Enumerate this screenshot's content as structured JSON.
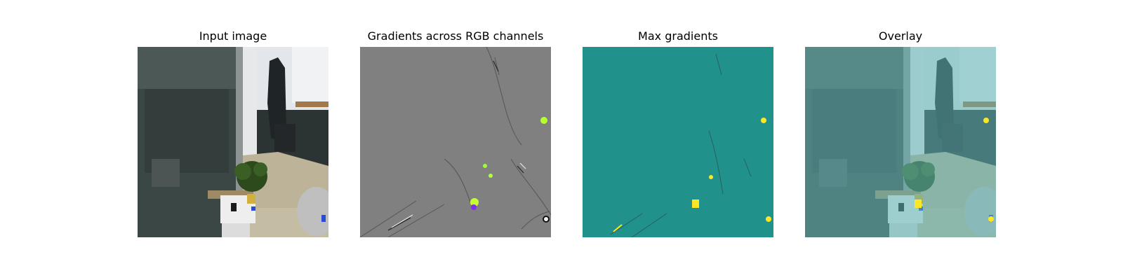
{
  "figure": {
    "panels": [
      {
        "id": "input",
        "title": "Input image"
      },
      {
        "id": "gradients",
        "title": "Gradients across RGB channels"
      },
      {
        "id": "max",
        "title": "Max gradients"
      },
      {
        "id": "overlay",
        "title": "Overlay"
      }
    ]
  },
  "colors": {
    "background": "#ffffff",
    "gradient_neutral": "#808080",
    "max_gradient_base": "#21918c",
    "highlight_yellow": "#fde725",
    "overlay_tint": "#5fb4b4"
  }
}
